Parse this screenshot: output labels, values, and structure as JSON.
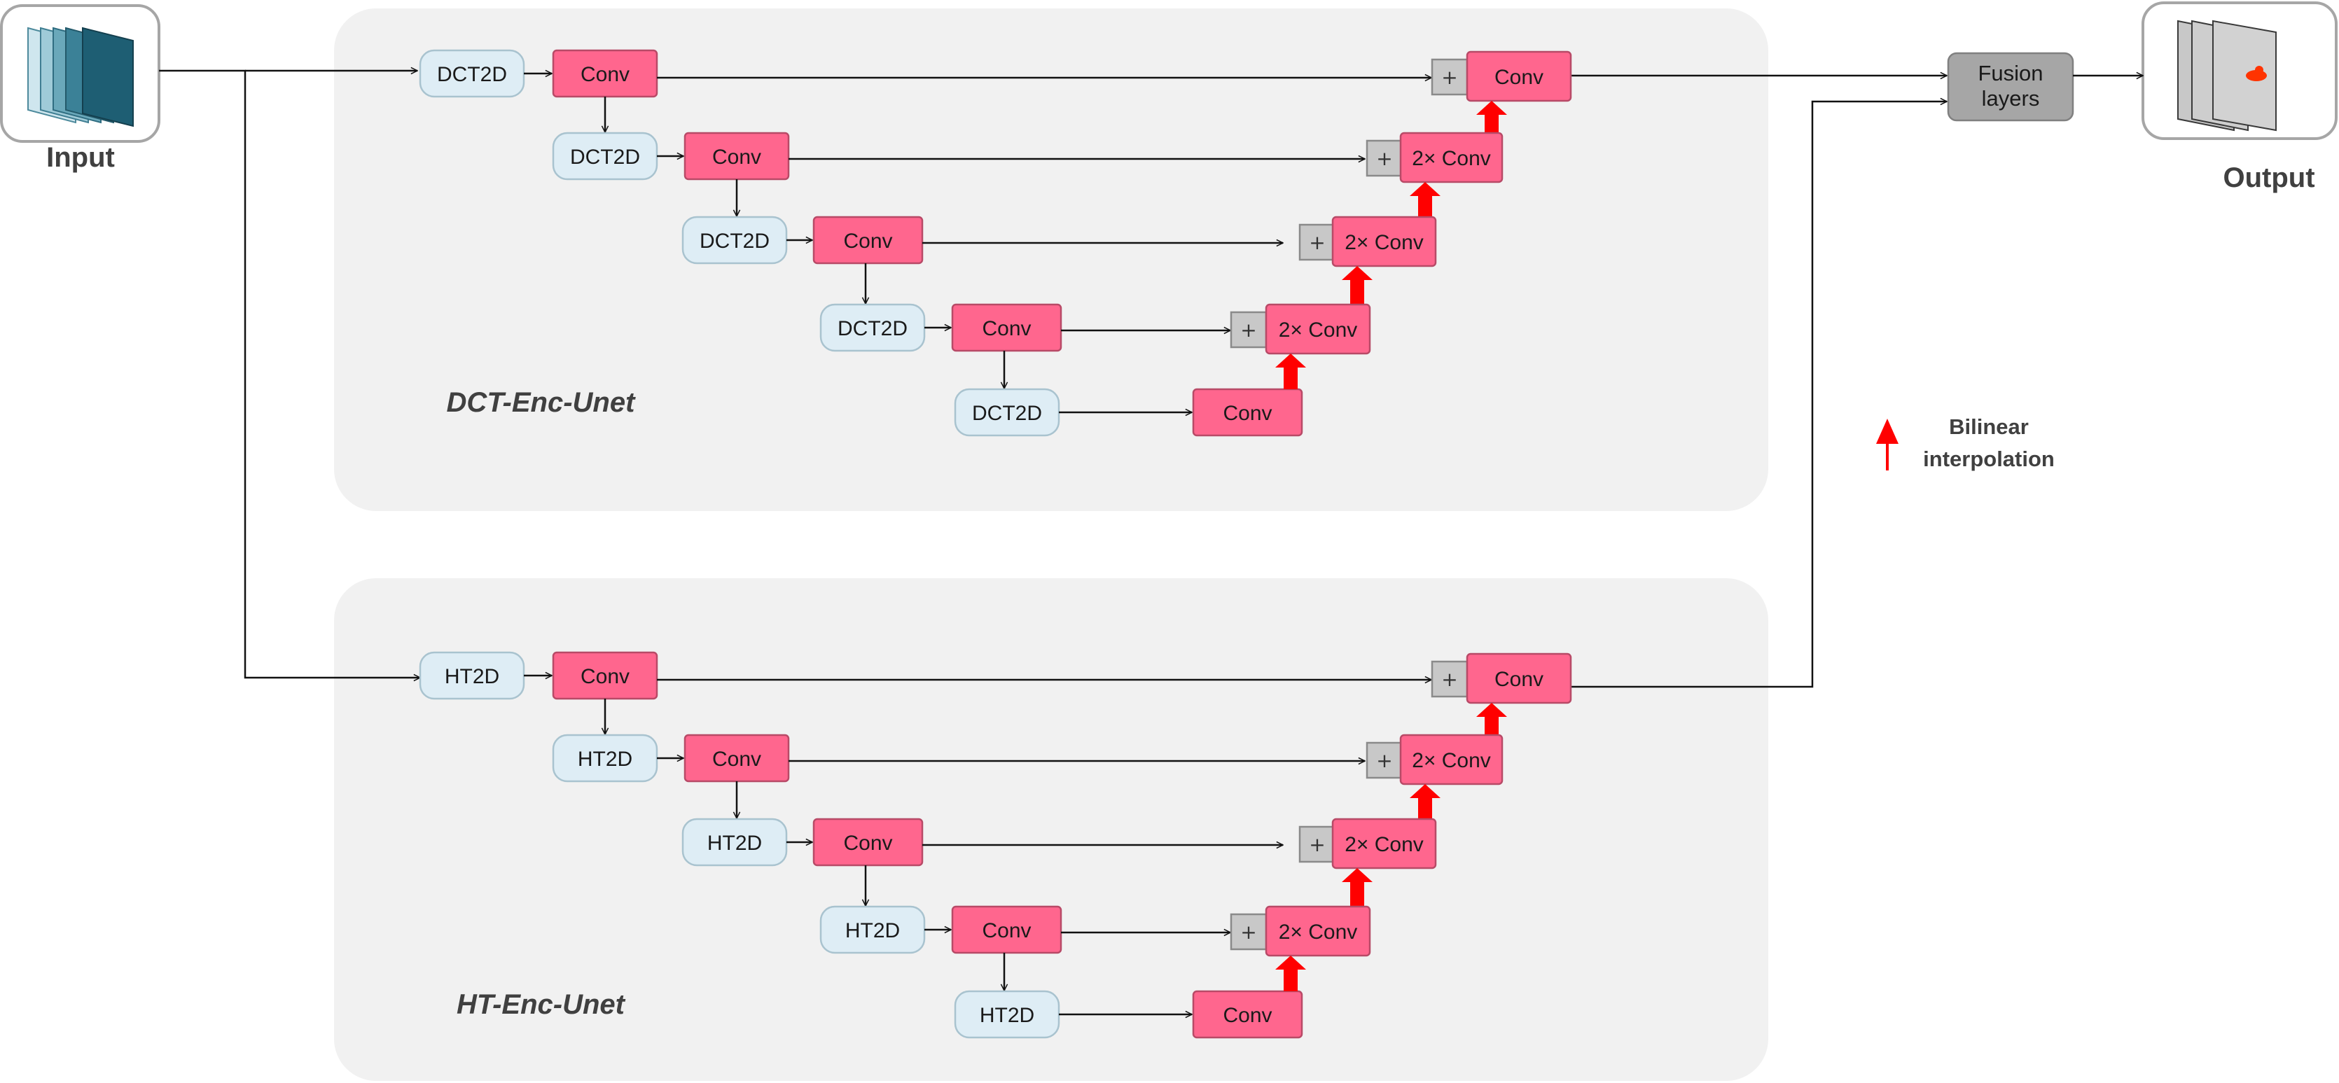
{
  "input_label": "Input",
  "output_label": "Output",
  "fusion_label_line1": "Fusion",
  "fusion_label_line2": "layers",
  "legend_label_line1": "Bilinear",
  "legend_label_line2": "interpolation",
  "branches": [
    {
      "title": "DCT-Enc-Unet",
      "transform_label": "DCT2D"
    },
    {
      "title": "HT-Enc-Unet",
      "transform_label": "HT2D"
    }
  ],
  "labels": {
    "conv": "Conv",
    "two_conv": "2× Conv",
    "plus": "+"
  },
  "colors": {
    "transform_block": "#deedf5",
    "conv_block": "#ff668e",
    "upsample_arrow": "#ff0000",
    "fusion_block": "#a6a6a6",
    "region_background": "#f1f1f1",
    "input_stack": "#1e5e73"
  }
}
